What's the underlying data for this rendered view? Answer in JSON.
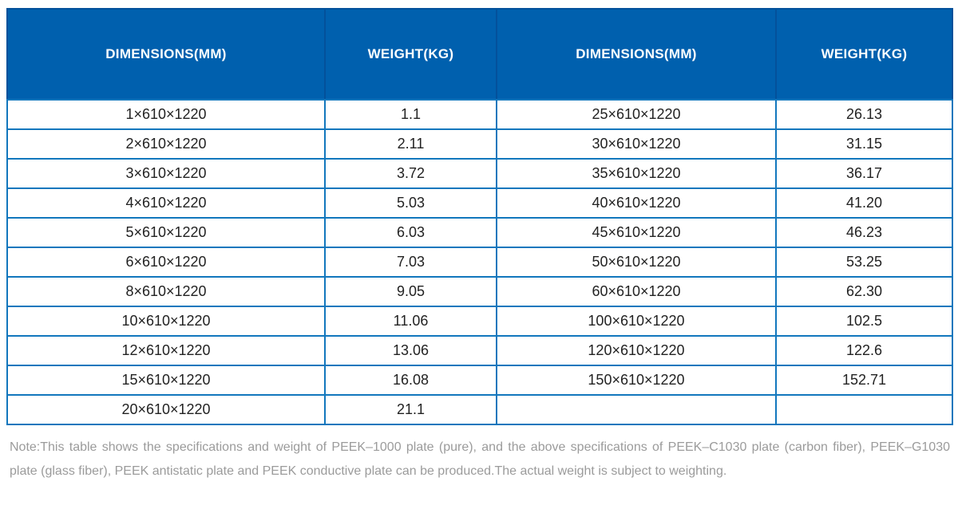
{
  "table": {
    "headers": [
      "DIMENSIONS(MM)",
      "WEIGHT(KG)",
      "DIMENSIONS(MM)",
      "WEIGHT(KG)"
    ],
    "rows": [
      [
        "1×610×1220",
        "1.1",
        "25×610×1220",
        "26.13"
      ],
      [
        "2×610×1220",
        "2.11",
        "30×610×1220",
        "31.15"
      ],
      [
        "3×610×1220",
        "3.72",
        "35×610×1220",
        "36.17"
      ],
      [
        "4×610×1220",
        "5.03",
        "40×610×1220",
        "41.20"
      ],
      [
        "5×610×1220",
        "6.03",
        "45×610×1220",
        "46.23"
      ],
      [
        "6×610×1220",
        "7.03",
        "50×610×1220",
        "53.25"
      ],
      [
        "8×610×1220",
        "9.05",
        "60×610×1220",
        "62.30"
      ],
      [
        "10×610×1220",
        "11.06",
        "100×610×1220",
        "102.5"
      ],
      [
        "12×610×1220",
        "13.06",
        "120×610×1220",
        "122.6"
      ],
      [
        "15×610×1220",
        "16.08",
        "150×610×1220",
        "152.71"
      ],
      [
        "20×610×1220",
        "21.1",
        "",
        ""
      ]
    ]
  },
  "note": "Note:This table shows the specifications and weight of PEEK–1000 plate (pure), and the above specifications of PEEK–C1030 plate (carbon fiber), PEEK–G1030 plate (glass fiber), PEEK antistatic plate and PEEK conductive plate can be produced.The actual weight is subject to weighting.",
  "colors": {
    "header_background": "#0060ae",
    "header_divider": "#03519b",
    "grid_border": "#1277bd",
    "cell_text": "#222222",
    "note_text": "#9b9b9b"
  }
}
